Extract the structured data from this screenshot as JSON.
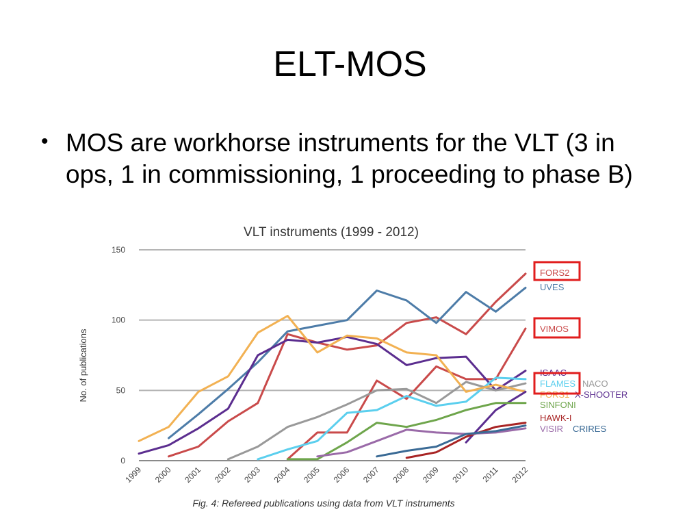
{
  "slide": {
    "title": "ELT-MOS",
    "bullet": "MOS are workhorse instruments for the VLT (3 in ops, 1 in commissioning, 1 proceeding to phase B)"
  },
  "chart_data": {
    "type": "line",
    "title": "VLT instruments (1999 - 2012)",
    "ylabel": "No. of publications",
    "xlabel": "",
    "caption": "Fig. 4: Refereed publications using data from VLT instruments",
    "x": [
      "1999",
      "2000",
      "2001",
      "2002",
      "2003",
      "2004",
      "2005",
      "2006",
      "2007",
      "2008",
      "2009",
      "2010",
      "2011",
      "2012"
    ],
    "yticks": [
      0,
      50,
      100,
      150
    ],
    "ylim": [
      0,
      150
    ],
    "grid": "horizontal",
    "legend_position": "right",
    "highlighted_legend_entries": [
      "FORS2",
      "VIMOS",
      "FLAMES"
    ],
    "highlight_color": "#e11d1d",
    "series": [
      {
        "name": "FORS2",
        "color": "#c94a4a",
        "values": [
          null,
          3,
          10,
          28,
          41,
          90,
          84,
          79,
          82,
          98,
          102,
          90,
          113,
          133
        ]
      },
      {
        "name": "UVES",
        "color": "#4d7ca8",
        "values": [
          null,
          16,
          33,
          51,
          70,
          92,
          96,
          100,
          121,
          114,
          98,
          120,
          106,
          123
        ]
      },
      {
        "name": "VIMOS",
        "color": "#c94a4a",
        "values": [
          null,
          null,
          null,
          null,
          null,
          1,
          20,
          20,
          57,
          44,
          67,
          58,
          58,
          94
        ]
      },
      {
        "name": "ISAAC",
        "color": "#5b2d8f",
        "values": [
          5,
          11,
          23,
          37,
          75,
          86,
          84,
          88,
          83,
          68,
          73,
          74,
          50,
          64
        ]
      },
      {
        "name": "FLAMES",
        "color": "#5bcfee",
        "values": [
          null,
          null,
          null,
          null,
          1,
          8,
          14,
          34,
          36,
          46,
          39,
          42,
          59,
          58
        ]
      },
      {
        "name": "NACO",
        "color": "#999999",
        "values": [
          null,
          null,
          null,
          1,
          10,
          24,
          31,
          40,
          50,
          51,
          41,
          56,
          50,
          55
        ]
      },
      {
        "name": "FORS1",
        "color": "#f2b152",
        "values": [
          14,
          24,
          49,
          60,
          91,
          103,
          77,
          89,
          87,
          77,
          75,
          49,
          54,
          49
        ]
      },
      {
        "name": "X-SHOOTER",
        "color": "#5b2d8f",
        "values": [
          null,
          null,
          null,
          null,
          null,
          null,
          null,
          null,
          null,
          null,
          null,
          13,
          36,
          49
        ]
      },
      {
        "name": "SINFONI",
        "color": "#6ea54b",
        "values": [
          null,
          null,
          null,
          null,
          null,
          1,
          1,
          13,
          27,
          24,
          29,
          36,
          41,
          41
        ]
      },
      {
        "name": "HAWK-I",
        "color": "#a82424",
        "values": [
          null,
          null,
          null,
          null,
          null,
          null,
          null,
          null,
          null,
          2,
          6,
          17,
          24,
          27
        ]
      },
      {
        "name": "VISIR",
        "color": "#9a6aa8",
        "values": [
          null,
          null,
          null,
          null,
          null,
          null,
          3,
          6,
          14,
          22,
          20,
          19,
          20,
          23
        ]
      },
      {
        "name": "CRIRES",
        "color": "#3a6a95",
        "values": [
          null,
          null,
          null,
          null,
          null,
          null,
          null,
          null,
          3,
          7,
          10,
          19,
          21,
          25
        ]
      }
    ]
  }
}
